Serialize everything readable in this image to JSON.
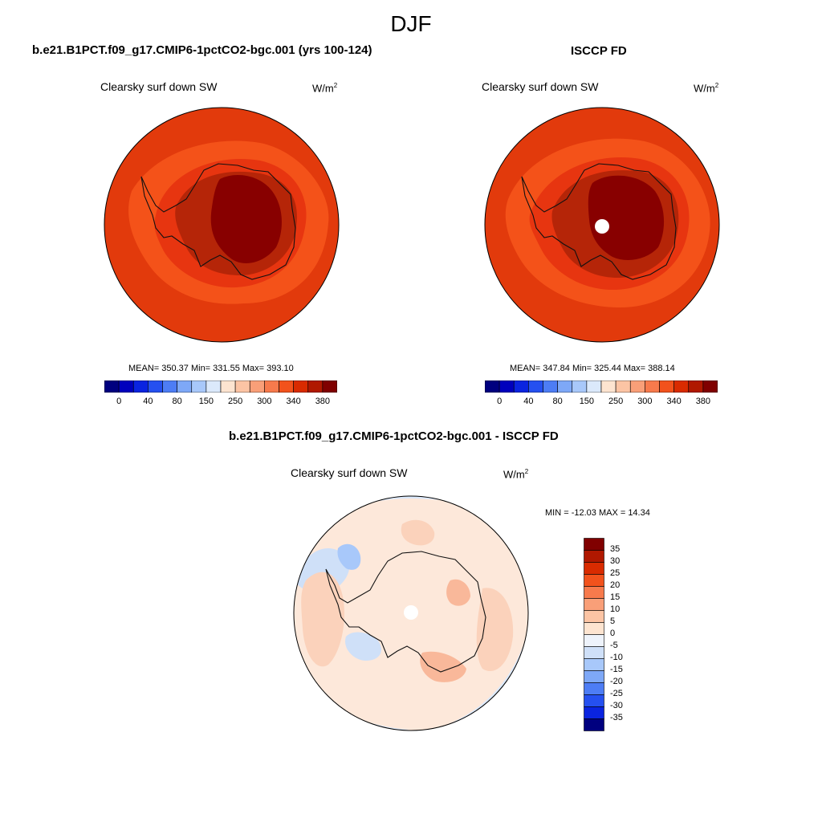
{
  "title": "DJF",
  "variable": "Clearsky surf down SW",
  "units": {
    "base": "W/m",
    "exp": "2"
  },
  "panels": [
    {
      "title": "b.e21.B1PCT.f09_g17.CMIP6-1pctCO2-bgc.001 (yrs 100-124)",
      "stats_text": "MEAN= 350.37  Min= 331.55  Max= 393.10",
      "mean": 350.37,
      "min": 331.55,
      "max": 393.1
    },
    {
      "title": "ISCCP FD",
      "stats_text": "MEAN= 347.84  Min= 325.44  Max= 388.14",
      "mean": 347.84,
      "min": 325.44,
      "max": 388.14
    }
  ],
  "top_colorbar": {
    "colors": [
      "#00007f",
      "#0000bd",
      "#0a24e0",
      "#2550f0",
      "#4d7df5",
      "#7ea8f7",
      "#a8c8fa",
      "#dbe9fb",
      "#fde4d0",
      "#fcc4a4",
      "#f99f78",
      "#f77a4c",
      "#f2521c",
      "#d92b00",
      "#b01800",
      "#800000"
    ],
    "tick_labels": [
      "0",
      "40",
      "80",
      "150",
      "250",
      "300",
      "340",
      "380"
    ]
  },
  "diff_panel": {
    "title": "b.e21.B1PCT.f09_g17.CMIP6-1pctCO2-bgc.001 - ISCCP FD",
    "stats_text": "MIN = -12.03 MAX =  14.34",
    "min": -12.03,
    "max": 14.34
  },
  "diff_colorbar": {
    "colors_top_to_bottom": [
      "#800000",
      "#b01800",
      "#d92b00",
      "#f2521c",
      "#f77a4c",
      "#f99f78",
      "#fcc4a4",
      "#fde4d0",
      "#eef3fb",
      "#cfe0f8",
      "#a8c8fa",
      "#7ea8f7",
      "#4d7df5",
      "#2550f0",
      "#0a24e0",
      "#00007f"
    ],
    "tick_labels": [
      "35",
      "30",
      "25",
      "20",
      "15",
      "10",
      "5",
      "0",
      "-5",
      "-10",
      "-15",
      "-20",
      "-25",
      "-30",
      "-35"
    ]
  }
}
